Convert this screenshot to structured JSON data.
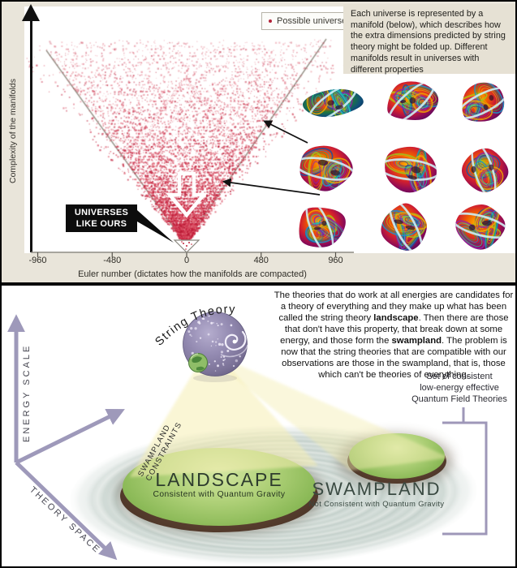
{
  "upper_panel": {
    "legend": {
      "label": "Possible universe"
    },
    "info_text": "Each universe is represented by a manifold (below), which describes how the extra dimensions predicted by string theory might be folded up. Different manifolds result in universes with different properties",
    "callout": "UNIVERSES\nLIKE OURS"
  },
  "chart_data": {
    "type": "scatter",
    "title": "",
    "xlabel": "Euler number (dictates how the manifolds are compacted)",
    "ylabel": "Complexity of the manifolds",
    "x_ticks": [
      -960,
      -480,
      0,
      480,
      960
    ],
    "xlim": [
      -1100,
      1100
    ],
    "legend": [
      "Possible universe"
    ],
    "legend_position": "top-right",
    "point_color": "#cf203c",
    "annotation": "UNIVERSES LIKE OURS",
    "distribution": {
      "shape": "V opening upward, vertex at Euler number 0 and lowest complexity",
      "density": "solid red near the vertex (low complexity), progressively sparser toward high complexity; bounded by two straight lines from the vertex",
      "points_approx": 10000
    }
  },
  "manifold_grid": {
    "rows": 3,
    "cols": 3,
    "icon": "calabi-yau-manifold"
  },
  "lower_panel": {
    "paragraph_segments": [
      {
        "t": "The theories that do work at all energies are candidates for a theory of everything and they make up what has been called the string theory ",
        "b": false
      },
      {
        "t": "landscape",
        "b": true
      },
      {
        "t": ". Then there are those that don't have this property, that break down at some energy, and those form the ",
        "b": false
      },
      {
        "t": "swampland",
        "b": true
      },
      {
        "t": ". The problem is now that the string theories that are compatible with our observations are those in the swampland, that is, those which can't be theories of everything.",
        "b": false
      }
    ],
    "qft_label": "Set of consistent\nlow-energy effective\nQuantum Field Theories",
    "string_theory_label": "String Theory",
    "swampland_constraints_label": "SWAMPLAND CONSTRAINTS",
    "energy_scale_label": "ENERGY SCALE",
    "theory_space_label": "THEORY SPACE",
    "landscape": {
      "title": "LANDSCAPE",
      "subtitle": "Consistent with Quantum Gravity"
    },
    "swampland": {
      "title": "SWAMPLAND",
      "subtitle": "Not Consistent with Quantum Gravity"
    },
    "colors": {
      "axis_purple": "#9e99ba",
      "beam_yellow": "#f7f0b9",
      "grass_green": "#8cba58",
      "water_gray": "#ccd7d2"
    }
  }
}
